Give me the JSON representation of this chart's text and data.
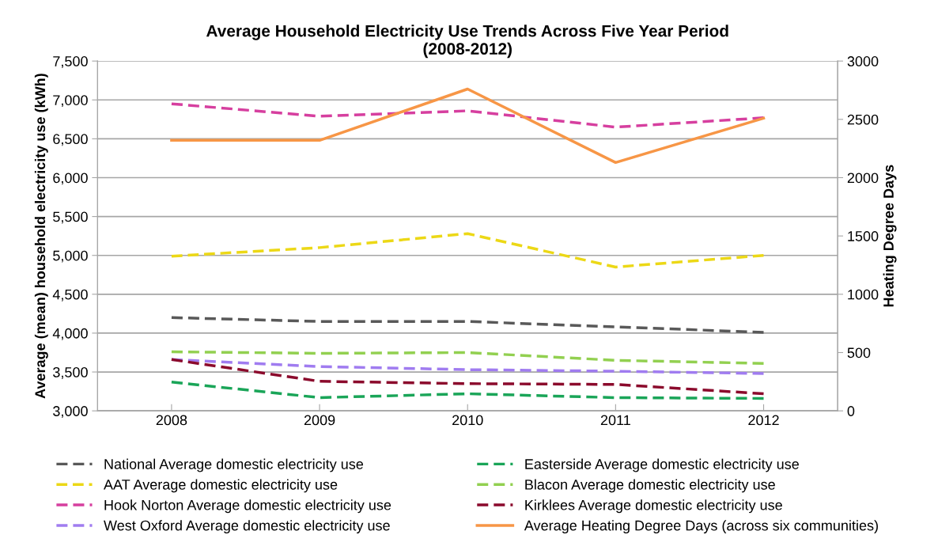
{
  "chart_data": {
    "type": "line",
    "title": "Average Household Electricity Use Trends Across Five Year Period\n(2008-2012)",
    "ylabel": "Average (mean) household electricity use (kWh)",
    "y2label": "Heating Degree Days",
    "categories": [
      "2008",
      "2009",
      "2010",
      "2011",
      "2012"
    ],
    "series": [
      {
        "name": "National Average domestic electricity use",
        "color": "#595959",
        "line_style": "dashed",
        "values": [
          4200,
          4150,
          4150,
          4080,
          4010
        ]
      },
      {
        "name": "AAT Average domestic electricity use",
        "color": "#ecd816",
        "line_style": "dashed",
        "values": [
          4990,
          5100,
          5280,
          4850,
          5000
        ]
      },
      {
        "name": "Hook Norton Average domestic electricity use",
        "color": "#d63f9f",
        "line_style": "dashed",
        "values": [
          6950,
          6790,
          6860,
          6650,
          6770
        ]
      },
      {
        "name": "West Oxford Average domestic electricity use",
        "color": "#a07cf0",
        "line_style": "dashed",
        "values": [
          3660,
          3570,
          3530,
          3510,
          3480
        ]
      },
      {
        "name": "Easterside Average domestic electricity use",
        "color": "#1aa558",
        "line_style": "dashed",
        "values": [
          3370,
          3170,
          3220,
          3170,
          3160
        ]
      },
      {
        "name": "Blacon Average domestic electricity use",
        "color": "#92d050",
        "line_style": "dashed",
        "values": [
          3760,
          3740,
          3750,
          3650,
          3610
        ]
      },
      {
        "name": "Kirklees Average domestic electricity use",
        "color": "#8b0a2c",
        "line_style": "dashed",
        "values": [
          3660,
          3380,
          3350,
          3340,
          3220
        ]
      },
      {
        "name": "Average Heating Degree Days (across six communities)",
        "color": "#f79646",
        "line_style": "solid",
        "axis": "y2",
        "values": [
          2320,
          2320,
          2760,
          2130,
          2510
        ]
      }
    ],
    "ylim": [
      3000,
      7500
    ],
    "yticks": [
      {
        "value": 3000,
        "label": "3,000"
      },
      {
        "value": 3500,
        "label": "3,500"
      },
      {
        "value": 4000,
        "label": "4,000"
      },
      {
        "value": 4500,
        "label": "4,500"
      },
      {
        "value": 5000,
        "label": "5,000"
      },
      {
        "value": 5500,
        "label": "5,500"
      },
      {
        "value": 6000,
        "label": "6,000"
      },
      {
        "value": 6500,
        "label": "6,500"
      },
      {
        "value": 7000,
        "label": "7,000"
      },
      {
        "value": 7500,
        "label": "7,500"
      }
    ],
    "y2lim": [
      0,
      3000
    ],
    "y2ticks": [
      0,
      500,
      1000,
      1500,
      2000,
      2500,
      3000
    ],
    "grid": "y",
    "legend": "bottom"
  }
}
